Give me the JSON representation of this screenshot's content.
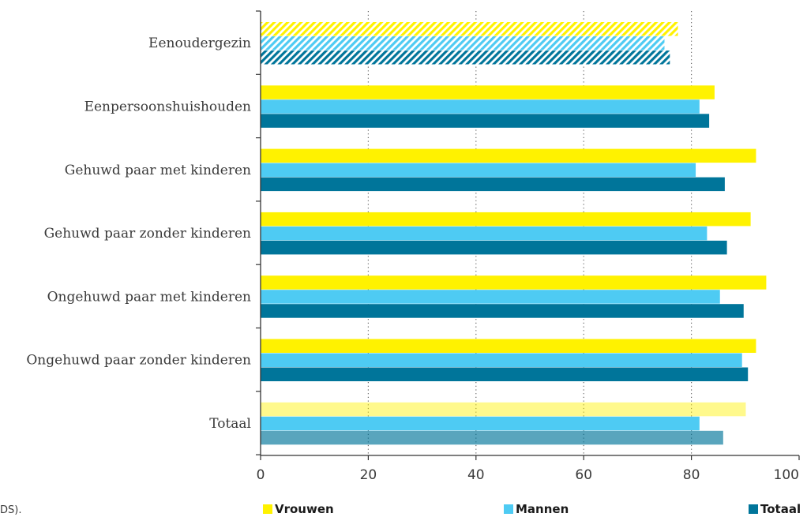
{
  "source_fragment": "DS).",
  "chart_data": {
    "type": "bar",
    "orientation": "horizontal",
    "categories": [
      "Eenoudergezin",
      "Eenpersoonshuishouden",
      "Gehuwd paar met kinderen",
      "Gehuwd paar zonder kinderen",
      "Ongehuwd paar met kinderen",
      "Ongehuwd paar zonder kinderen",
      "Totaal"
    ],
    "series": [
      {
        "name": "Vrouwen",
        "color": "#fff200",
        "values": [
          77.5,
          84.3,
          92,
          91,
          93.9,
          92,
          90.1
        ]
      },
      {
        "name": "Mannen",
        "color": "#4ecbf3",
        "values": [
          75,
          81.5,
          80.8,
          82.9,
          85.3,
          89.4,
          81.5
        ]
      },
      {
        "name": "Totaal",
        "color": "#00759a",
        "values": [
          76,
          83.3,
          86.2,
          86.6,
          89.7,
          90.5,
          85.9
        ]
      }
    ],
    "hatched_categories": [
      "Eenoudergezin"
    ],
    "light_categories": [
      "Totaal"
    ],
    "xlim": [
      0,
      100
    ],
    "xticks": [
      0,
      20,
      40,
      60,
      80,
      100
    ],
    "grid": "vertical-dotted",
    "legend_position": "bottom"
  }
}
